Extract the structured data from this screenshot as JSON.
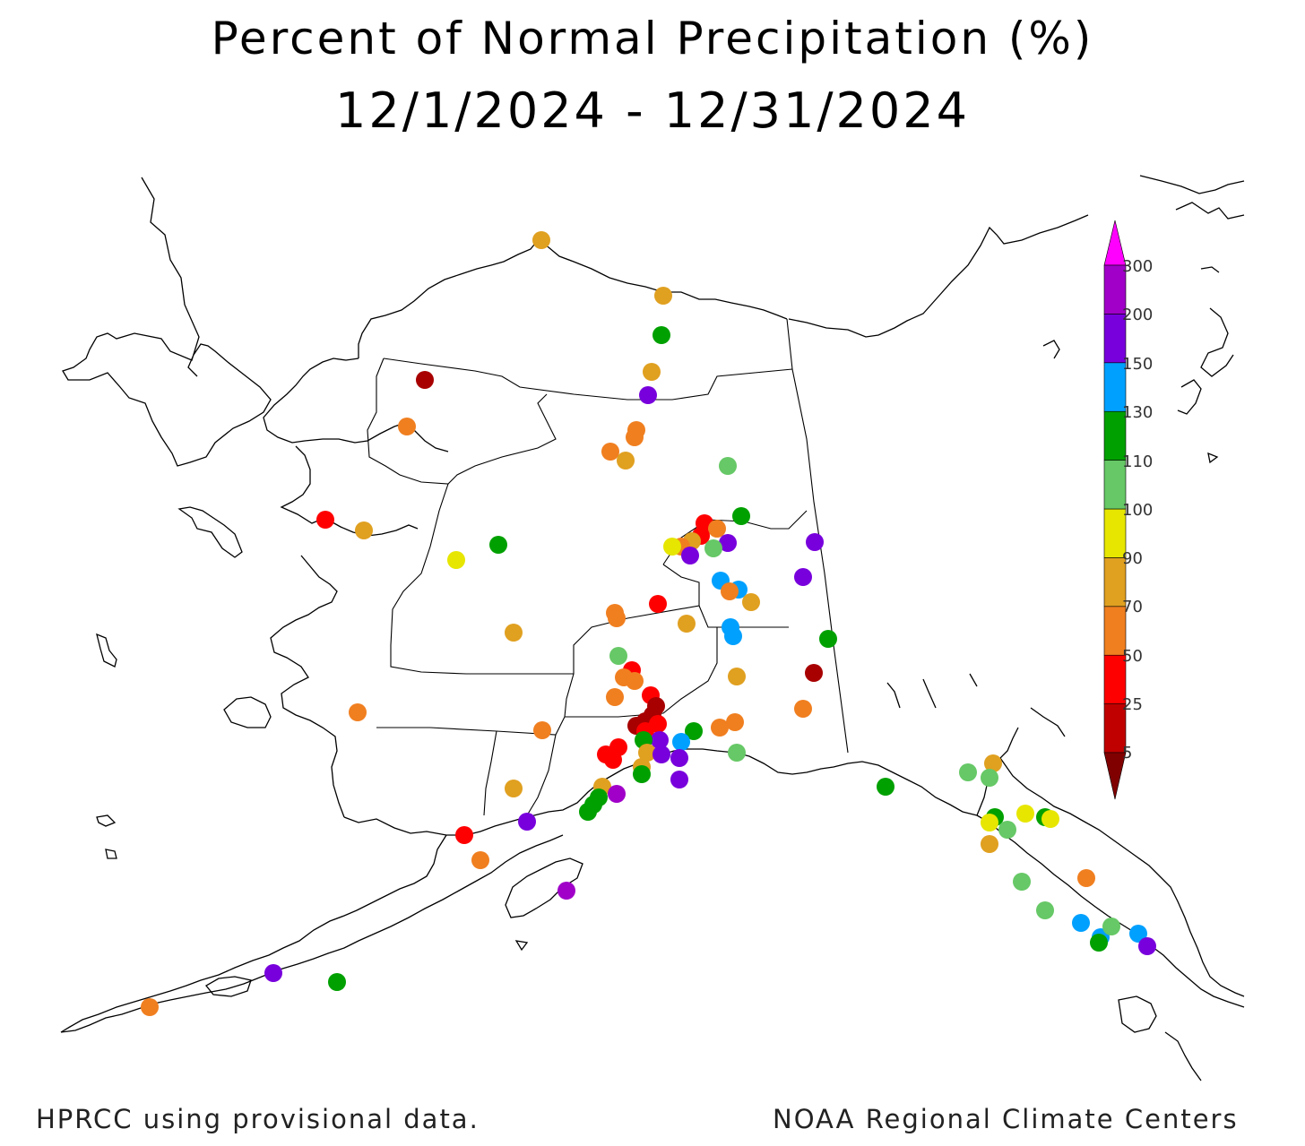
{
  "title": "Percent of Normal Precipitation (%)",
  "subtitle": "12/1/2024 - 12/31/2024",
  "footer": {
    "left": "HPRCC using provisional data.",
    "right": "NOAA Regional Climate Centers"
  },
  "colors": {
    "c5": "#a80000",
    "c25": "#ff0000",
    "c50": "#f07f20",
    "c70": "#e0a020",
    "c90": "#e6e600",
    "c100": "#66c866",
    "c110": "#00a000",
    "c130": "#00a0ff",
    "c150": "#7800dc",
    "c200": "#a000c8",
    "c300": "#ff00ff"
  },
  "legend": {
    "labels": [
      "300",
      "200",
      "150",
      "130",
      "110",
      "100",
      "90",
      "70",
      "50",
      "25",
      "5"
    ],
    "bins": [
      {
        "label": "5",
        "color": "#c00000"
      },
      {
        "label": "25",
        "color": "#ff0000"
      },
      {
        "label": "50",
        "color": "#f07f20"
      },
      {
        "label": "70",
        "color": "#e0a020"
      },
      {
        "label": "90",
        "color": "#e6e600"
      },
      {
        "label": "100",
        "color": "#66c866"
      },
      {
        "label": "110",
        "color": "#00a000"
      },
      {
        "label": "130",
        "color": "#00a0ff"
      },
      {
        "label": "150",
        "color": "#7800dc"
      },
      {
        "label": "200",
        "color": "#a000c8"
      },
      {
        "label": "300",
        "color": "#ff00ff"
      }
    ],
    "below_min_color": "#800000"
  }
}
